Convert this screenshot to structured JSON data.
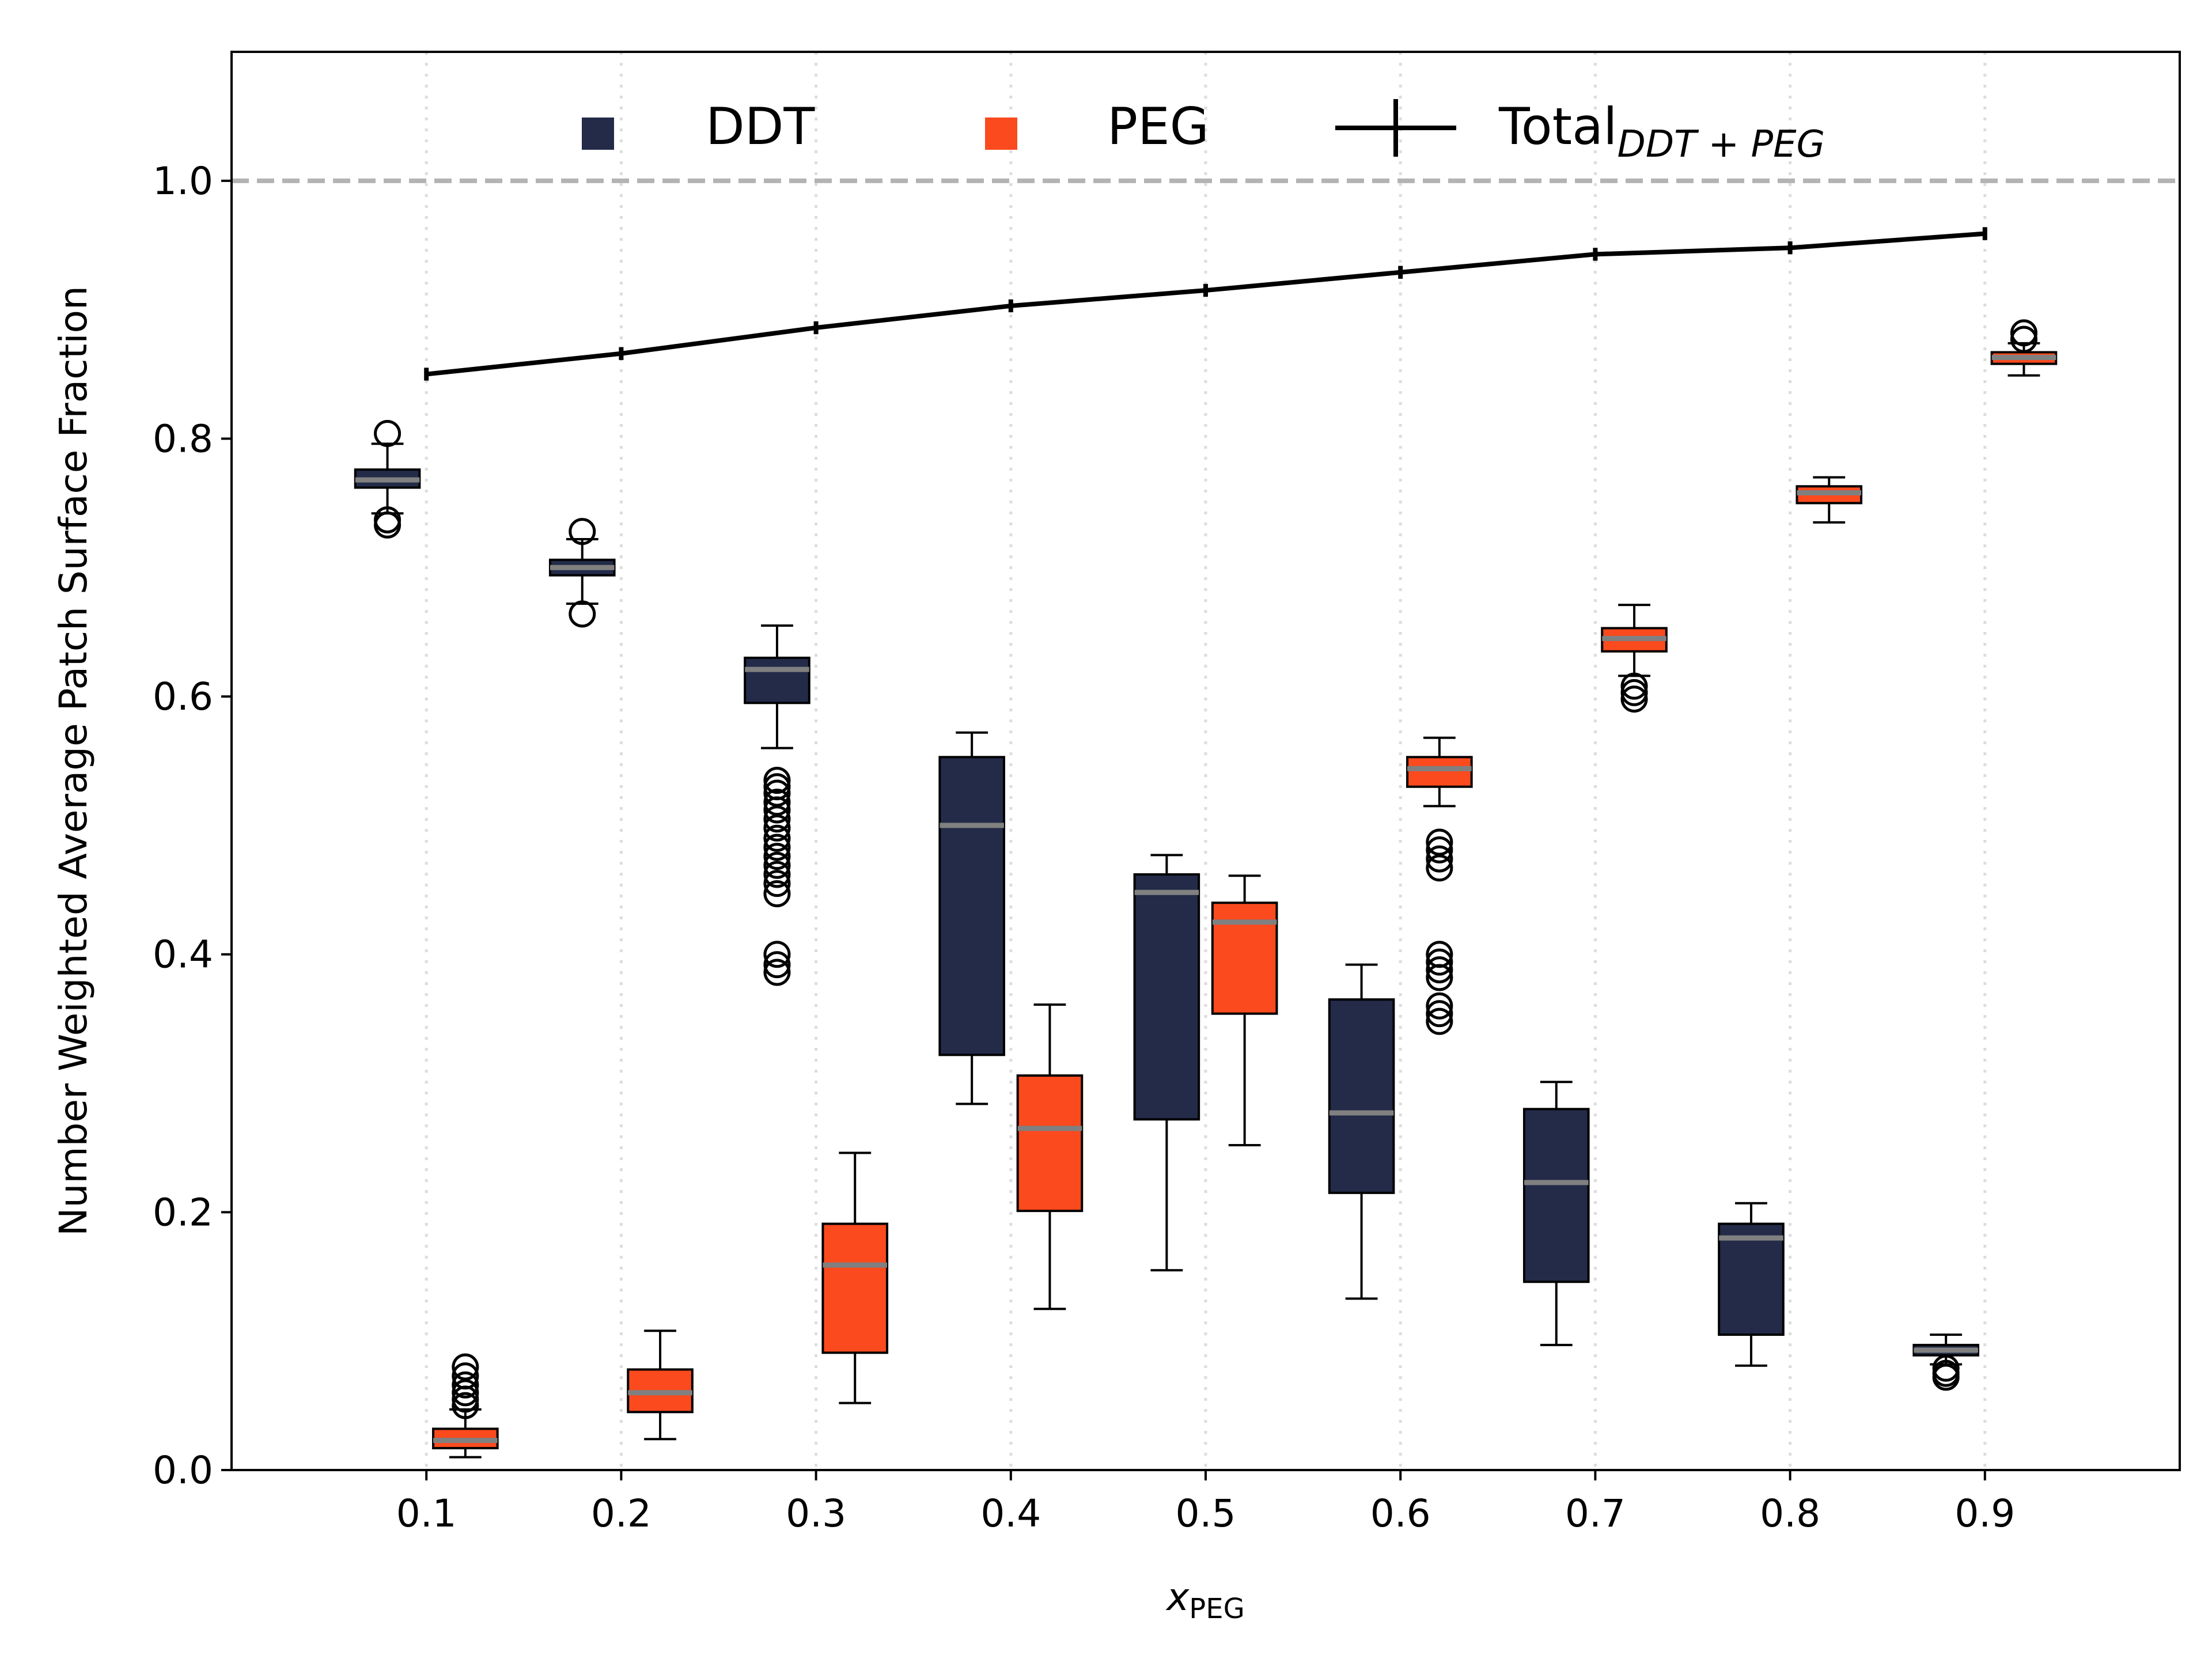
{
  "chart_data": {
    "type": "box",
    "xlabel_main": "x",
    "xlabel_sub": "PEG",
    "ylabel": "Number Weighted Average Patch Surface Fraction",
    "xlim": [
      0,
      1.0
    ],
    "ylim": [
      0,
      1.1
    ],
    "xticks": [
      0.1,
      0.2,
      0.3,
      0.4,
      0.5,
      0.6,
      0.7,
      0.8,
      0.9
    ],
    "xtick_labels": [
      "0.1",
      "0.2",
      "0.3",
      "0.4",
      "0.5",
      "0.6",
      "0.7",
      "0.8",
      "0.9"
    ],
    "yticks": [
      0.0,
      0.2,
      0.4,
      0.6,
      0.8,
      1.0
    ],
    "ytick_labels": [
      "0.0",
      "0.2",
      "0.4",
      "0.6",
      "0.8",
      "1.0"
    ],
    "reference_line": 1.0,
    "grid": "vertical dotted at x ticks",
    "legend": {
      "placement": "top-center",
      "ddt_label": "DDT",
      "peg_label": "PEG",
      "total_label_main": "Total",
      "total_label_sub": "DDT + PEG"
    },
    "colors": {
      "DDT": "#232b49",
      "PEG": "#fa4a1e",
      "median": "#808080",
      "total": "#000000",
      "reference": "#b3b3b3",
      "grid": "#dddddd"
    },
    "series": [
      {
        "name": "DDT",
        "boxes": [
          {
            "x": 0.1,
            "whislo": 0.742,
            "q1": 0.762,
            "med": 0.768,
            "q3": 0.776,
            "whishi": 0.796,
            "fliers": [
              0.804,
              0.737,
              0.733
            ]
          },
          {
            "x": 0.2,
            "whislo": 0.672,
            "q1": 0.694,
            "med": 0.7,
            "q3": 0.706,
            "whishi": 0.722,
            "fliers": [
              0.728,
              0.664
            ]
          },
          {
            "x": 0.3,
            "whislo": 0.56,
            "q1": 0.595,
            "med": 0.621,
            "q3": 0.63,
            "whishi": 0.655,
            "fliers": [
              0.535,
              0.53,
              0.525,
              0.518,
              0.512,
              0.505,
              0.498,
              0.49,
              0.483,
              0.476,
              0.469,
              0.462,
              0.455,
              0.447,
              0.4,
              0.392,
              0.386
            ]
          },
          {
            "x": 0.4,
            "whislo": 0.284,
            "q1": 0.322,
            "med": 0.5,
            "q3": 0.553,
            "whishi": 0.572,
            "fliers": []
          },
          {
            "x": 0.5,
            "whislo": 0.155,
            "q1": 0.272,
            "med": 0.448,
            "q3": 0.462,
            "whishi": 0.477,
            "fliers": []
          },
          {
            "x": 0.6,
            "whislo": 0.133,
            "q1": 0.215,
            "med": 0.277,
            "q3": 0.365,
            "whishi": 0.392,
            "fliers": []
          },
          {
            "x": 0.7,
            "whislo": 0.097,
            "q1": 0.146,
            "med": 0.223,
            "q3": 0.28,
            "whishi": 0.301,
            "fliers": []
          },
          {
            "x": 0.8,
            "whislo": 0.081,
            "q1": 0.105,
            "med": 0.18,
            "q3": 0.191,
            "whishi": 0.207,
            "fliers": []
          },
          {
            "x": 0.9,
            "whislo": 0.082,
            "q1": 0.089,
            "med": 0.093,
            "q3": 0.097,
            "whishi": 0.105,
            "fliers": [
              0.079,
              0.075,
              0.072
            ]
          }
        ]
      },
      {
        "name": "PEG",
        "boxes": [
          {
            "x": 0.1,
            "whislo": 0.01,
            "q1": 0.017,
            "med": 0.023,
            "q3": 0.032,
            "whishi": 0.047,
            "fliers": [
              0.08,
              0.073,
              0.066,
              0.06,
              0.055,
              0.05
            ]
          },
          {
            "x": 0.2,
            "whislo": 0.024,
            "q1": 0.045,
            "med": 0.06,
            "q3": 0.078,
            "whishi": 0.108,
            "fliers": []
          },
          {
            "x": 0.3,
            "whislo": 0.052,
            "q1": 0.091,
            "med": 0.159,
            "q3": 0.191,
            "whishi": 0.246,
            "fliers": []
          },
          {
            "x": 0.4,
            "whislo": 0.125,
            "q1": 0.201,
            "med": 0.265,
            "q3": 0.306,
            "whishi": 0.361,
            "fliers": []
          },
          {
            "x": 0.5,
            "whislo": 0.252,
            "q1": 0.354,
            "med": 0.425,
            "q3": 0.44,
            "whishi": 0.461,
            "fliers": []
          },
          {
            "x": 0.6,
            "whislo": 0.515,
            "q1": 0.53,
            "med": 0.544,
            "q3": 0.553,
            "whishi": 0.568,
            "fliers": [
              0.487,
              0.481,
              0.474,
              0.467,
              0.4,
              0.394,
              0.388,
              0.382,
              0.36,
              0.354,
              0.348
            ]
          },
          {
            "x": 0.7,
            "whislo": 0.616,
            "q1": 0.635,
            "med": 0.645,
            "q3": 0.653,
            "whishi": 0.671,
            "fliers": [
              0.608,
              0.603,
              0.598
            ]
          },
          {
            "x": 0.8,
            "whislo": 0.735,
            "q1": 0.75,
            "med": 0.758,
            "q3": 0.763,
            "whishi": 0.77,
            "fliers": []
          },
          {
            "x": 0.9,
            "whislo": 0.849,
            "q1": 0.858,
            "med": 0.863,
            "q3": 0.867,
            "whishi": 0.874,
            "fliers": [
              0.882,
              0.877
            ]
          }
        ]
      },
      {
        "name": "Total",
        "x": [
          0.1,
          0.2,
          0.3,
          0.4,
          0.5,
          0.6,
          0.7,
          0.8,
          0.9
        ],
        "values": [
          0.85,
          0.866,
          0.886,
          0.903,
          0.915,
          0.929,
          0.943,
          0.948,
          0.959
        ],
        "errors": [
          0.005,
          0.005,
          0.005,
          0.005,
          0.005,
          0.005,
          0.005,
          0.005,
          0.005
        ]
      }
    ]
  }
}
